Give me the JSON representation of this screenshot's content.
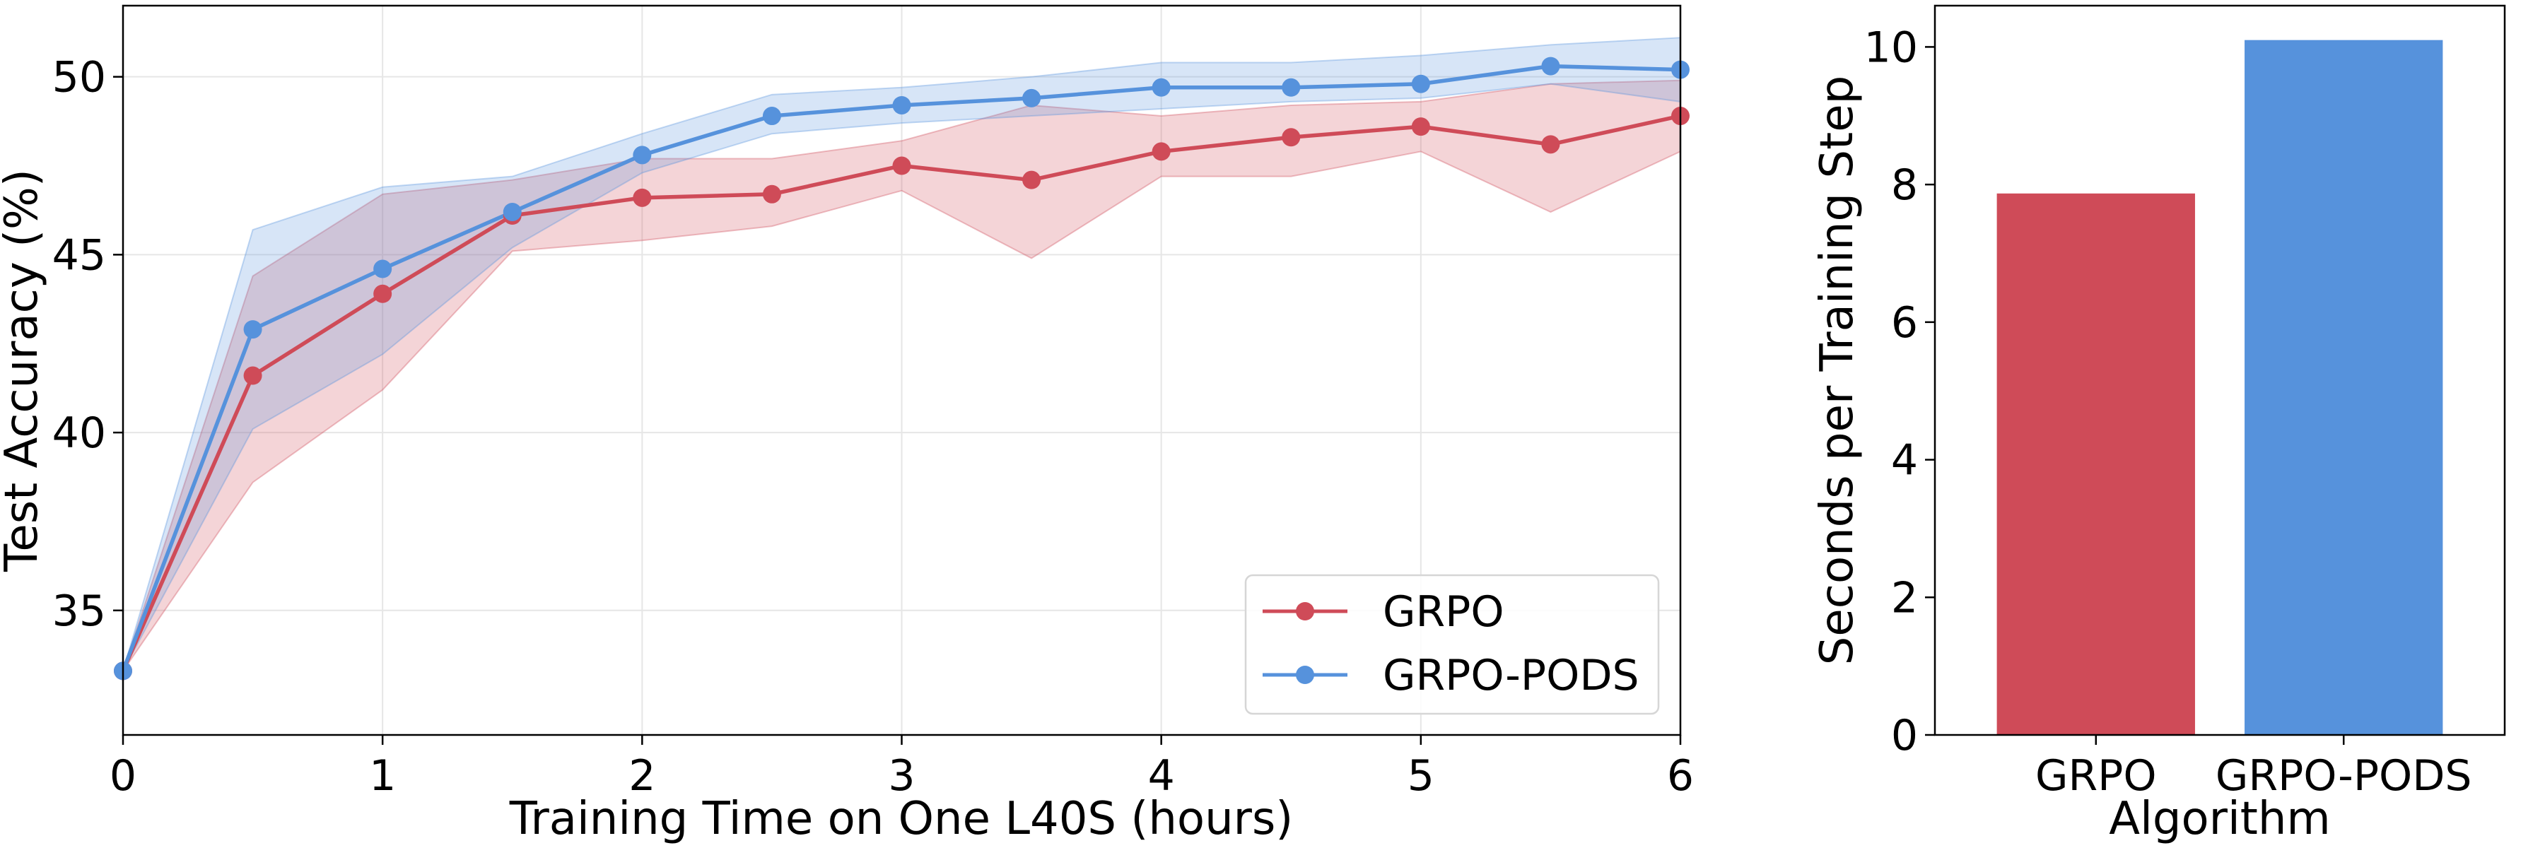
{
  "chart_data": [
    {
      "type": "line",
      "title": "",
      "xlabel": "Training Time on One L40S (hours)",
      "ylabel": "Test Accuracy (%)",
      "xlim": [
        0,
        6
      ],
      "ylim": [
        31.5,
        52
      ],
      "xticks": [
        "0",
        "1",
        "2",
        "3",
        "4",
        "5",
        "6"
      ],
      "yticks": [
        "35",
        "40",
        "45",
        "50"
      ],
      "grid": true,
      "legend_position": "bottom-right",
      "x": [
        0,
        0.5,
        1,
        1.5,
        2,
        2.5,
        3,
        3.5,
        4,
        4.5,
        5,
        5.5,
        6
      ],
      "series": [
        {
          "name": "GRPO",
          "color": "#cf4b58",
          "values": [
            33.3,
            41.6,
            43.9,
            46.1,
            46.6,
            46.7,
            47.5,
            47.1,
            47.9,
            48.3,
            48.6,
            48.1,
            48.9
          ],
          "lower": [
            33.3,
            38.6,
            41.2,
            45.1,
            45.4,
            45.8,
            46.8,
            44.9,
            47.2,
            47.2,
            47.9,
            46.2,
            47.9
          ],
          "upper": [
            33.3,
            44.4,
            46.7,
            47.1,
            47.7,
            47.7,
            48.2,
            49.2,
            48.9,
            49.2,
            49.3,
            49.8,
            49.9
          ]
        },
        {
          "name": "GRPO-PODS",
          "color": "#5692dc",
          "values": [
            33.3,
            42.9,
            44.6,
            46.2,
            47.8,
            48.9,
            49.2,
            49.4,
            49.7,
            49.7,
            49.8,
            50.3,
            50.2
          ],
          "lower": [
            33.3,
            40.1,
            42.2,
            45.2,
            47.3,
            48.4,
            48.7,
            48.9,
            49.1,
            49.3,
            49.4,
            49.8,
            49.3
          ],
          "upper": [
            33.3,
            45.7,
            46.9,
            47.2,
            48.4,
            49.5,
            49.7,
            50.0,
            50.4,
            50.4,
            50.6,
            50.9,
            51.1
          ]
        }
      ]
    },
    {
      "type": "bar",
      "title": "",
      "xlabel": "Algorithm",
      "ylabel": "Seconds per Training Step",
      "ylim": [
        0,
        10.6
      ],
      "yticks": [
        "0",
        "2",
        "4",
        "6",
        "8",
        "10"
      ],
      "grid": false,
      "categories": [
        "GRPO",
        "GRPO-PODS"
      ],
      "values": [
        7.87,
        10.1
      ],
      "colors": [
        "#cf4b58",
        "#5692dc"
      ]
    }
  ]
}
